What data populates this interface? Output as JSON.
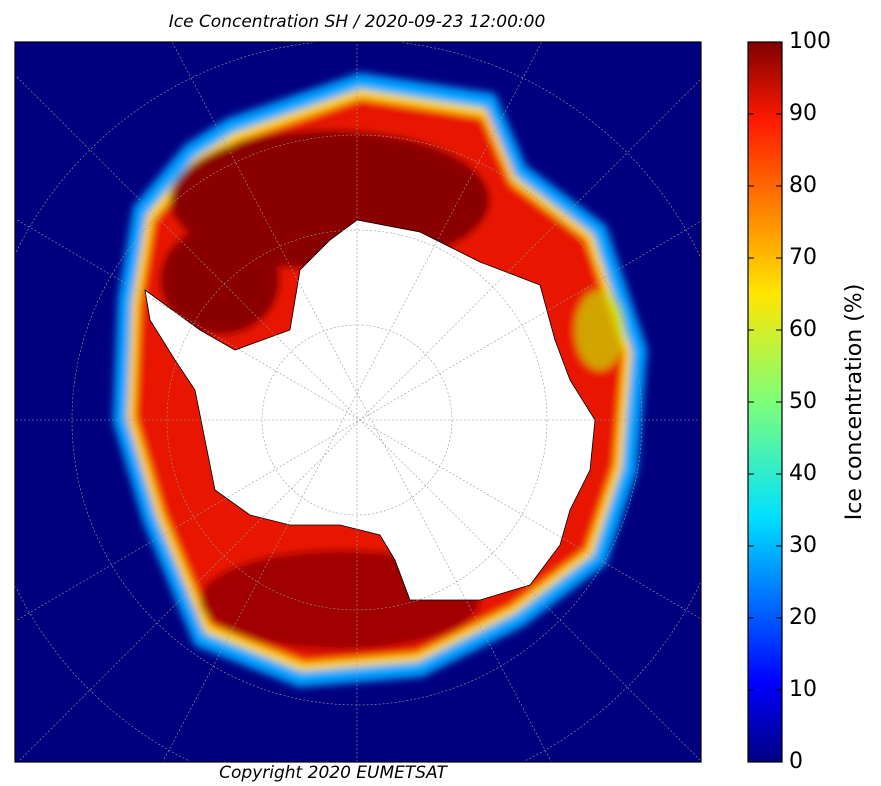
{
  "title": "Ice Concentration SH / 2020-09-23 12:00:00",
  "footer": "Copyright 2020 EUMETSAT",
  "colorbar": {
    "label": "Ice concentration (%)",
    "range": [
      0,
      100
    ],
    "ticks": [
      0,
      10,
      20,
      30,
      40,
      50,
      60,
      70,
      80,
      90,
      100
    ]
  }
}
